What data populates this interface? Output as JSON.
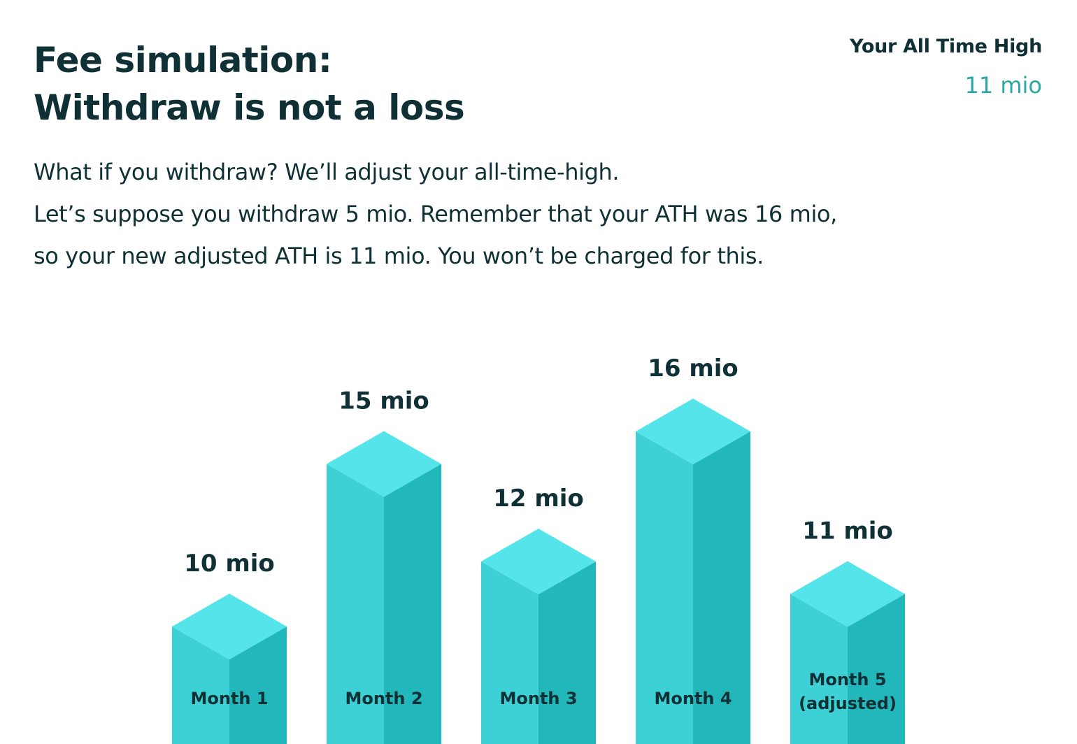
{
  "header": {
    "title_line1": "Fee simulation:",
    "title_line2": "Withdraw is not a loss"
  },
  "ath": {
    "label": "Your All Time High",
    "value": "11 mio"
  },
  "description": {
    "line1": "What if you withdraw? We’ll adjust your all-time-high.",
    "line2": "Let’s suppose you withdraw 5 mio. Remember that your ATH was 16 mio,",
    "line3": "so your new adjusted ATH is 11 mio. You won’t be charged for this."
  },
  "colors": {
    "top": "#55e4e9",
    "left": "#3dd1d6",
    "right": "#22b8bb",
    "text": "#0f3135",
    "accent": "#2aa7a5"
  },
  "chart_data": {
    "type": "bar",
    "categories": [
      [
        "Month 1"
      ],
      [
        "Month 2"
      ],
      [
        "Month 3"
      ],
      [
        "Month 4"
      ],
      [
        "Month 5",
        "(adjusted)"
      ]
    ],
    "values": [
      10,
      15,
      12,
      16,
      11
    ],
    "value_labels": [
      "10 mio",
      "15 mio",
      "12 mio",
      "16 mio",
      "11 mio"
    ],
    "unit": "mio",
    "title": "",
    "xlabel": "",
    "ylabel": "",
    "grid": false,
    "legend": "none"
  }
}
